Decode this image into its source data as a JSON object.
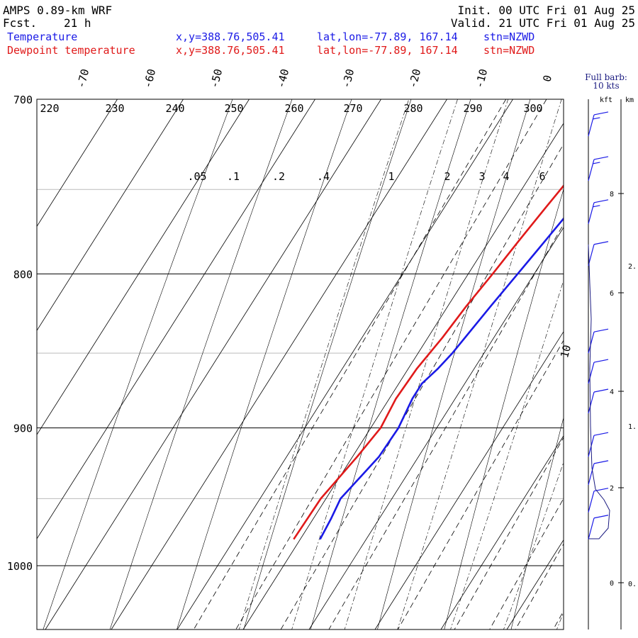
{
  "header": {
    "model": "AMPS 0.89-km WRF",
    "fcst_label": "Fcst.",
    "fcst_value": "21 h",
    "init": "Init. 00 UTC Fri 01 Aug 25",
    "valid": "Valid. 21 UTC Fri 01 Aug 25"
  },
  "legend": {
    "temperature": {
      "name": "Temperature",
      "xy": "x,y=388.76,505.41",
      "latlon": "lat,lon=-77.89, 167.14",
      "stn": "stn=NZWD",
      "color": "#1a1ae6"
    },
    "dewpoint": {
      "name": "Dewpoint temperature",
      "xy": "x,y=388.76,505.41",
      "latlon": "lat,lon=-77.89, 167.14",
      "stn": "stn=NZWD",
      "color": "#e01a1a"
    }
  },
  "wind_panel": {
    "barb_note_1": "Full barb:",
    "barb_note_2": "10 kts",
    "kft_label": "kft",
    "km_label": "km",
    "kft_ticks": [
      "8",
      "6",
      "4",
      "2",
      "0"
    ],
    "km_ticks": [
      "2.",
      "1.",
      "0."
    ]
  },
  "chart_data": {
    "type": "line",
    "pressure_levels": [
      700,
      800,
      900,
      1000
    ],
    "pressure_tick_labels": [
      "700",
      "800",
      "900",
      "1000"
    ],
    "temperature_tick_labels": [
      "-70",
      "-60",
      "-50",
      "-40",
      "-30",
      "-20",
      "-10",
      "0",
      "10"
    ],
    "theta_labels": [
      "220",
      "230",
      "240",
      "250",
      "260",
      "270",
      "280",
      "290",
      "300"
    ],
    "mixing_ratio_labels": [
      ".05",
      ".1",
      ".2",
      ".4",
      "1",
      "2",
      "3",
      "4",
      "6"
    ],
    "series": [
      {
        "name": "Temperature",
        "color": "#1a1ae6",
        "points": [
          {
            "p": 980,
            "t": -37.0
          },
          {
            "p": 965,
            "t": -37.3
          },
          {
            "p": 950,
            "t": -37.8
          },
          {
            "p": 940,
            "t": -37.2
          },
          {
            "p": 920,
            "t": -36.0
          },
          {
            "p": 900,
            "t": -35.8
          },
          {
            "p": 880,
            "t": -36.5
          },
          {
            "p": 870,
            "t": -36.5
          },
          {
            "p": 860,
            "t": -35.5
          },
          {
            "p": 850,
            "t": -34.8
          },
          {
            "p": 820,
            "t": -33.5
          },
          {
            "p": 800,
            "t": -32.5
          },
          {
            "p": 780,
            "t": -31.5
          },
          {
            "p": 760,
            "t": -30.5
          },
          {
            "p": 740,
            "t": -29.5
          },
          {
            "p": 720,
            "t": -28.5
          },
          {
            "p": 700,
            "t": -27.5
          }
        ]
      },
      {
        "name": "Dewpoint temperature",
        "color": "#e01a1a",
        "points": [
          {
            "p": 980,
            "t": -41.0
          },
          {
            "p": 950,
            "t": -40.8
          },
          {
            "p": 920,
            "t": -39.3
          },
          {
            "p": 900,
            "t": -38.5
          },
          {
            "p": 880,
            "t": -39.0
          },
          {
            "p": 860,
            "t": -38.7
          },
          {
            "p": 840,
            "t": -37.8
          },
          {
            "p": 820,
            "t": -37.2
          },
          {
            "p": 800,
            "t": -36.3
          },
          {
            "p": 780,
            "t": -35.5
          },
          {
            "p": 760,
            "t": -34.6
          },
          {
            "p": 740,
            "t": -33.6
          },
          {
            "p": 720,
            "t": -32.8
          },
          {
            "p": 700,
            "t": -31.5
          }
        ]
      }
    ],
    "wind_barbs_kts": [
      {
        "p": 720,
        "speed": 15
      },
      {
        "p": 745,
        "speed": 15
      },
      {
        "p": 770,
        "speed": 15
      },
      {
        "p": 795,
        "speed": 10
      },
      {
        "p": 850,
        "speed": 10
      },
      {
        "p": 870,
        "speed": 10
      },
      {
        "p": 890,
        "speed": 10
      },
      {
        "p": 920,
        "speed": 10
      },
      {
        "p": 940,
        "speed": 10
      },
      {
        "p": 960,
        "speed": 10
      },
      {
        "p": 980,
        "speed": 10
      }
    ]
  }
}
